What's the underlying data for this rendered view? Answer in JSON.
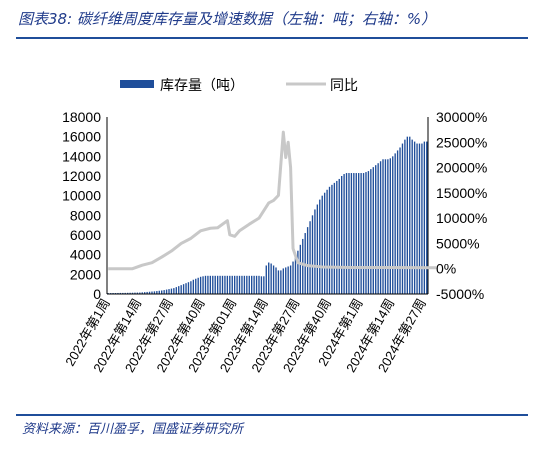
{
  "title": "图表38:  碳纤维周度库存量及增速数据（左轴：吨；右轴：%）",
  "source": "资料来源：百川盈孚，国盛证券研究所",
  "colors": {
    "bar": "#1f4e9a",
    "line": "#c8c8c8",
    "accent": "#1f4e9a",
    "text": "#000000"
  },
  "chart_data": {
    "type": "bar",
    "legend_position": "top",
    "categories_shown": [
      "2022年第1周",
      "2022年第14周",
      "2022年第27周",
      "2022年第40周",
      "2023年第01周",
      "2023年第14周",
      "2023年第27周",
      "2023年第40周",
      "2024年第1周",
      "2024年第14周",
      "2024年第27周"
    ],
    "left_axis": {
      "ylim": [
        0,
        18000
      ],
      "ticks": [
        "0",
        "2000",
        "4000",
        "6000",
        "8000",
        "10000",
        "12000",
        "14000",
        "16000",
        "18000"
      ]
    },
    "right_axis": {
      "ylim": [
        -5000,
        30000
      ],
      "ticks": [
        "-5000%",
        "0%",
        "5000%",
        "10000%",
        "15000%",
        "20000%",
        "25000%",
        "30000%"
      ]
    },
    "series": [
      {
        "name": "库存量（吨）",
        "axis": "left",
        "kind": "bar",
        "values": [
          90,
          95,
          100,
          100,
          105,
          110,
          110,
          115,
          120,
          125,
          130,
          140,
          145,
          150,
          170,
          190,
          210,
          230,
          250,
          270,
          300,
          330,
          360,
          400,
          450,
          500,
          550,
          600,
          700,
          800,
          900,
          1000,
          1100,
          1200,
          1300,
          1450,
          1550,
          1650,
          1750,
          1800,
          1850,
          1850,
          1850,
          1850,
          1850,
          1850,
          1850,
          1850,
          1850,
          1850,
          1850,
          1850,
          1850,
          1850,
          1850,
          1850,
          1850,
          1850,
          1850,
          1850,
          1850,
          1850,
          1850,
          1800,
          1800,
          2900,
          3200,
          3100,
          2900,
          2700,
          2400,
          2400,
          2600,
          2700,
          2800,
          2900,
          3300,
          3800,
          4400,
          5000,
          5600,
          6200,
          6800,
          7400,
          8000,
          8600,
          9100,
          9600,
          10000,
          10300,
          10600,
          10900,
          11100,
          11300,
          11500,
          11700,
          12000,
          12200,
          12300,
          12300,
          12300,
          12300,
          12300,
          12300,
          12300,
          12300,
          12400,
          12500,
          12700,
          12900,
          13100,
          13300,
          13500,
          13700,
          13700,
          13700,
          13800,
          14000,
          14300,
          14600,
          14900,
          15300,
          15700,
          16000,
          16000,
          15700,
          15500,
          15300,
          15300,
          15300,
          15500,
          15500
        ]
      },
      {
        "name": "同比",
        "axis": "right",
        "kind": "line",
        "points": [
          [
            0,
            0
          ],
          [
            5,
            0
          ],
          [
            10,
            0
          ],
          [
            14,
            700
          ],
          [
            18,
            1200
          ],
          [
            22,
            2300
          ],
          [
            26,
            3500
          ],
          [
            30,
            5000
          ],
          [
            34,
            6000
          ],
          [
            38,
            7500
          ],
          [
            42,
            8000
          ],
          [
            45,
            8100
          ],
          [
            49,
            9500
          ],
          [
            50,
            6700
          ],
          [
            52,
            6400
          ],
          [
            54,
            7500
          ],
          [
            58,
            8800
          ],
          [
            62,
            10000
          ],
          [
            66,
            13000
          ],
          [
            68,
            13500
          ],
          [
            70,
            14500
          ],
          [
            72,
            27000
          ],
          [
            73,
            22000
          ],
          [
            74,
            25000
          ],
          [
            75,
            20000
          ],
          [
            76,
            4000
          ],
          [
            78,
            1200
          ],
          [
            82,
            600
          ],
          [
            88,
            350
          ],
          [
            100,
            250
          ],
          [
            115,
            250
          ],
          [
            135,
            200
          ]
        ]
      }
    ]
  }
}
